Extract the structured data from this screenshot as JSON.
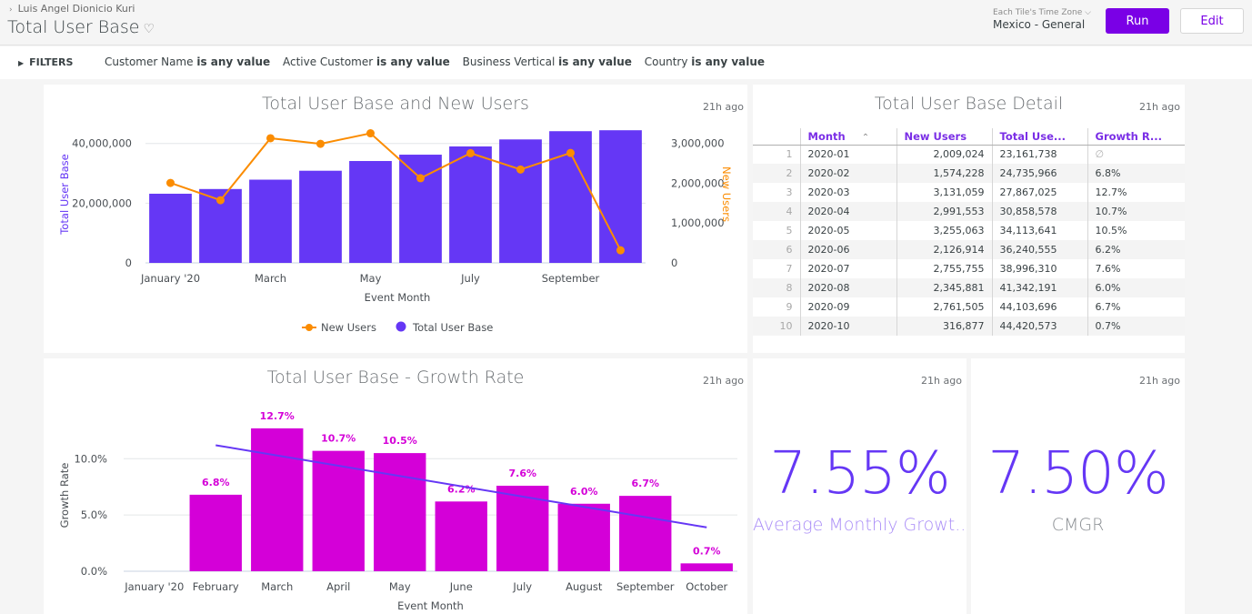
{
  "header": {
    "breadcrumb": "Luis Angel Dionicio Kuri",
    "title": "Total User Base",
    "timezone_label": "Each Tile's Time Zone",
    "timezone_value": "Mexico - General",
    "run_label": "Run",
    "edit_label": "Edit"
  },
  "filters": {
    "toggle_label": "FILTERS",
    "items": [
      {
        "field": "Customer Name",
        "condition": "is any value"
      },
      {
        "field": "Active Customer",
        "condition": "is any value"
      },
      {
        "field": "Business Vertical",
        "condition": "is any value"
      },
      {
        "field": "Country",
        "condition": "is any value"
      }
    ]
  },
  "tiles": {
    "combo": {
      "title": "Total User Base and New Users",
      "age": "21h ago"
    },
    "detail": {
      "title": "Total User Base Detail",
      "age": "21h ago"
    },
    "growth": {
      "title": "Total User Base - Growth Rate",
      "age": "21h ago"
    },
    "avg": {
      "value": "7.55%",
      "label": "Average Monthly Growt...",
      "age": "21h ago"
    },
    "cmgr": {
      "value": "7.50%",
      "label": "CMGR",
      "age": "21h ago"
    }
  },
  "table": {
    "headers": [
      "Month",
      "New Users",
      "Total Use...",
      "Growth R..."
    ],
    "sort_icon": "chevron-up",
    "rows": [
      {
        "idx": "1",
        "month": "2020-01",
        "new_users": "2,009,024",
        "total": "23,161,738",
        "growth": "∅"
      },
      {
        "idx": "2",
        "month": "2020-02",
        "new_users": "1,574,228",
        "total": "24,735,966",
        "growth": "6.8%"
      },
      {
        "idx": "3",
        "month": "2020-03",
        "new_users": "3,131,059",
        "total": "27,867,025",
        "growth": "12.7%"
      },
      {
        "idx": "4",
        "month": "2020-04",
        "new_users": "2,991,553",
        "total": "30,858,578",
        "growth": "10.7%"
      },
      {
        "idx": "5",
        "month": "2020-05",
        "new_users": "3,255,063",
        "total": "34,113,641",
        "growth": "10.5%"
      },
      {
        "idx": "6",
        "month": "2020-06",
        "new_users": "2,126,914",
        "total": "36,240,555",
        "growth": "6.2%"
      },
      {
        "idx": "7",
        "month": "2020-07",
        "new_users": "2,755,755",
        "total": "38,996,310",
        "growth": "7.6%"
      },
      {
        "idx": "8",
        "month": "2020-08",
        "new_users": "2,345,881",
        "total": "41,342,191",
        "growth": "6.0%"
      },
      {
        "idx": "9",
        "month": "2020-09",
        "new_users": "2,761,505",
        "total": "44,103,696",
        "growth": "6.7%"
      },
      {
        "idx": "10",
        "month": "2020-10",
        "new_users": "316,877",
        "total": "44,420,573",
        "growth": "0.7%"
      }
    ]
  },
  "colors": {
    "purple": "#6537f5",
    "orange": "#fb8c00",
    "magenta": "#d400d8",
    "brand": "#7a00e6"
  },
  "chart_data": [
    {
      "type": "bar",
      "title": "Total User Base and New Users",
      "xlabel": "Event Month",
      "ylabel": "Total User Base",
      "y2label": "New Users",
      "categories": [
        "January '20",
        "February",
        "March",
        "April",
        "May",
        "June",
        "July",
        "August",
        "September",
        "October"
      ],
      "x_tick_labels": [
        "January '20",
        "",
        "March",
        "",
        "May",
        "",
        "July",
        "",
        "September",
        ""
      ],
      "ylim": [
        0,
        46000000
      ],
      "y_ticks": [
        0,
        20000000,
        40000000
      ],
      "y_tick_labels": [
        "0",
        "20,000,000",
        "40,000,000"
      ],
      "y2lim": [
        0,
        3450000
      ],
      "y2_ticks": [
        0,
        1000000,
        2000000,
        3000000
      ],
      "y2_tick_labels": [
        "0",
        "1,000,000",
        "2,000,000",
        "3,000,000"
      ],
      "series": [
        {
          "name": "Total User Base",
          "type": "bar",
          "axis": "left",
          "values": [
            23161738,
            24735966,
            27867025,
            30858578,
            34113641,
            36240555,
            38996310,
            41342191,
            44103696,
            44420573
          ]
        },
        {
          "name": "New Users",
          "type": "line",
          "axis": "right",
          "values": [
            2009024,
            1574228,
            3131059,
            2991553,
            3255063,
            2126914,
            2755755,
            2345881,
            2761505,
            316877
          ]
        }
      ],
      "legend": [
        "New Users",
        "Total User Base"
      ],
      "legend_position": "bottom",
      "grid": true
    },
    {
      "type": "bar",
      "title": "Total User Base - Growth Rate",
      "xlabel": "Event Month",
      "ylabel": "Growth Rate",
      "categories": [
        "January '20",
        "February",
        "March",
        "April",
        "May",
        "June",
        "July",
        "August",
        "September",
        "October"
      ],
      "values": [
        null,
        6.8,
        12.7,
        10.7,
        10.5,
        6.2,
        7.6,
        6.0,
        6.7,
        0.7
      ],
      "data_labels": [
        "",
        "6.8%",
        "12.7%",
        "10.7%",
        "10.5%",
        "6.2%",
        "7.6%",
        "6.0%",
        "6.7%",
        "0.7%"
      ],
      "ylim": [
        0,
        13.5
      ],
      "y_ticks": [
        0,
        5,
        10
      ],
      "y_tick_labels": [
        "0.0%",
        "5.0%",
        "10.0%"
      ],
      "trendline": {
        "start": 11.2,
        "end": 3.9,
        "from_index": 1,
        "to_index": 9
      },
      "grid": true
    }
  ]
}
